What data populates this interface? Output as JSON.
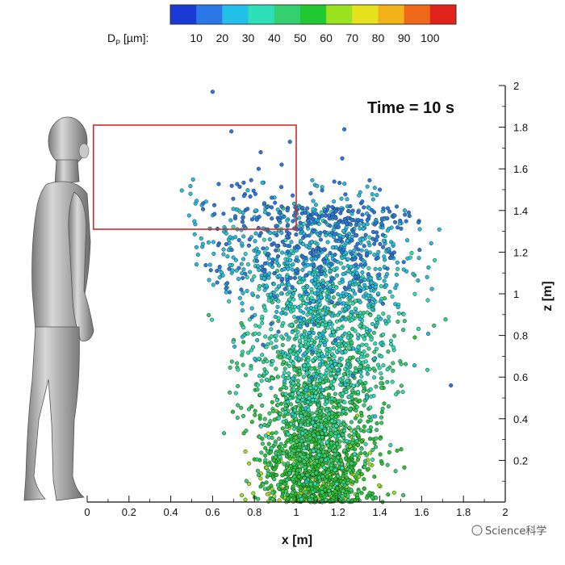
{
  "chart_data": {
    "type": "scatter",
    "title": "",
    "annotation": "Time = 10 s",
    "xlabel": "x [m]",
    "ylabel": "z [m]",
    "xlim": [
      0,
      2
    ],
    "ylim": [
      0,
      2
    ],
    "x_ticks": [
      "0",
      "0.2",
      "0.4",
      "0.6",
      "0.8",
      "1",
      "1.2",
      "1.4",
      "1.6",
      "1.8",
      "2"
    ],
    "y_ticks": [
      "0.2",
      "0.4",
      "0.6",
      "0.8",
      "1",
      "1.2",
      "1.4",
      "1.6",
      "1.8",
      "2"
    ],
    "grid": false,
    "colorbar": {
      "label_main": "D",
      "label_sub": "P",
      "label_unit": " [µm]:",
      "ticks": [
        "10",
        "20",
        "30",
        "40",
        "50",
        "60",
        "70",
        "80",
        "90",
        "100"
      ],
      "colors": [
        "#1a3ad6",
        "#2a78e8",
        "#22c0e8",
        "#2ee0b8",
        "#34d070",
        "#22c832",
        "#9be21e",
        "#e6e21e",
        "#f2b21a",
        "#ee6a1a",
        "#e0221a"
      ]
    },
    "region_box": {
      "x_range": [
        0.03,
        1.0
      ],
      "z_range": [
        1.31,
        1.81
      ],
      "color": "#d42a2a"
    },
    "series": [
      {
        "name": "",
        "size_range_um": [
          10,
          100
        ],
        "cloud_outline_xz": [
          [
            0.55,
            1.35
          ],
          [
            0.65,
            1.15
          ],
          [
            0.72,
            0.9
          ],
          [
            0.78,
            0.55
          ],
          [
            0.8,
            0.0
          ],
          [
            1.55,
            0.0
          ],
          [
            1.6,
            0.35
          ],
          [
            1.5,
            0.8
          ],
          [
            1.35,
            1.15
          ],
          [
            1.2,
            1.35
          ],
          [
            1.0,
            1.45
          ],
          [
            0.8,
            1.45
          ]
        ],
        "outliers_xz": [
          [
            0.6,
            1.97
          ],
          [
            0.69,
            1.78
          ],
          [
            1.23,
            1.79
          ],
          [
            0.83,
            1.68
          ],
          [
            0.97,
            1.73
          ],
          [
            1.22,
            1.65
          ],
          [
            0.82,
            1.6
          ],
          [
            0.93,
            1.62
          ],
          [
            1.4,
            1.5
          ],
          [
            1.52,
            1.38
          ],
          [
            0.75,
            1.47
          ],
          [
            1.74,
            0.56
          ]
        ]
      }
    ]
  },
  "watermark": "Science科学",
  "person_icon": "human-figure-icon"
}
